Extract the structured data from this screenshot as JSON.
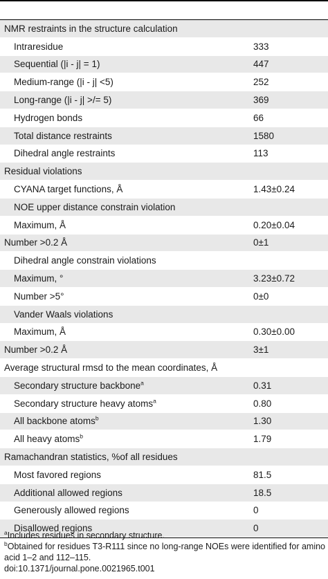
{
  "rows": [
    {
      "label": "NMR restraints in the structure calculation",
      "value": "",
      "section": true,
      "shade": true
    },
    {
      "label": "Intraresidue",
      "value": "333",
      "shade": false
    },
    {
      "label": "Sequential (|i - j| = 1)",
      "value": "447",
      "shade": true
    },
    {
      "label": "Medium-range (|i - j| <5)",
      "value": "252",
      "shade": false
    },
    {
      "label": "Long-range (|i - j| >/= 5)",
      "value": "369",
      "shade": true
    },
    {
      "label": "Hydrogen bonds",
      "value": "66",
      "shade": false
    },
    {
      "label": "Total distance restraints",
      "value": "1580",
      "shade": true
    },
    {
      "label": "Dihedral angle restraints",
      "value": "113",
      "shade": false
    },
    {
      "label": "Residual violations",
      "value": "",
      "section": true,
      "shade": true
    },
    {
      "label": "CYANA target functions, Å",
      "value": "1.43±0.24",
      "shade": false
    },
    {
      "label": "NOE upper distance constrain violation",
      "value": "",
      "shade": true
    },
    {
      "label": "Maximum, Å",
      "value": "0.20±0.04",
      "shade": false
    },
    {
      "label": "Number >0.2 Å",
      "value": "0±1",
      "section": true,
      "shade": true
    },
    {
      "label": "Dihedral angle constrain violations",
      "value": "",
      "shade": false
    },
    {
      "label": "Maximum, °",
      "value": "3.23±0.72",
      "shade": true
    },
    {
      "label": "Number >5°",
      "value": "0±0",
      "shade": false
    },
    {
      "label": "Vander Waals violations",
      "value": "",
      "shade": true
    },
    {
      "label": "Maximum, Å",
      "value": "0.30±0.00",
      "shade": false
    },
    {
      "label": "Number >0.2 Å",
      "value": "3±1",
      "section": true,
      "shade": true
    },
    {
      "label": "Average structural rmsd to the mean coordinates, Å",
      "value": "",
      "section": true,
      "shade": false
    },
    {
      "label": "Secondary structure backbone",
      "sup": "a",
      "value": "0.31",
      "shade": true
    },
    {
      "label": "Secondary structure heavy atoms",
      "sup": "a",
      "value": "0.80",
      "shade": false
    },
    {
      "label": "All backbone atoms",
      "sup": "b",
      "value": "1.30",
      "shade": true
    },
    {
      "label": "All heavy atoms",
      "sup": "b",
      "value": "1.79",
      "shade": false
    },
    {
      "label": "Ramachandran statistics, %of all residues",
      "value": "",
      "section": true,
      "shade": true
    },
    {
      "label": "Most favored regions",
      "value": "81.5",
      "shade": false
    },
    {
      "label": "Additional allowed regions",
      "value": "18.5",
      "shade": true
    },
    {
      "label": "Generously allowed regions",
      "value": "0",
      "shade": false
    },
    {
      "label": "Disallowed regions",
      "value": "0",
      "shade": true
    }
  ],
  "footnotes": {
    "a_mark": "a",
    "a_text": "Includes residues in secondary structure.",
    "b_mark": "b",
    "b_text": "Obtained for residues T3-R111 since no long-range NOEs were identified for amino acid 1–2 and 112–115.",
    "doi": "doi:10.1371/journal.pone.0021965.t001"
  }
}
